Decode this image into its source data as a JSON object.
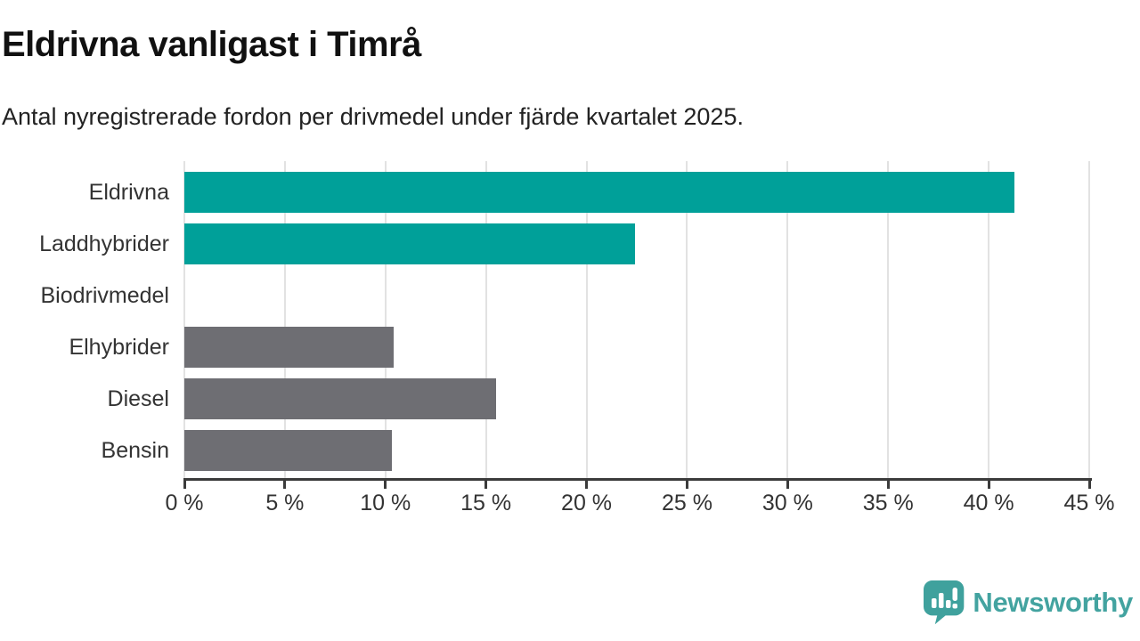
{
  "header": {
    "title": "Eldrivna vanligast i Timrå",
    "subtitle": "Antal nyregistrerade fordon per drivmedel under fjärde kvartalet 2025."
  },
  "chart_data": {
    "type": "bar",
    "orientation": "horizontal",
    "title": "Eldrivna vanligast i Timrå",
    "subtitle": "Antal nyregistrerade fordon per drivmedel under fjärde kvartalet 2025.",
    "categories": [
      "Eldrivna",
      "Laddhybrider",
      "Biodrivmedel",
      "Elhybrider",
      "Diesel",
      "Bensin"
    ],
    "values": [
      41.3,
      22.4,
      0,
      10.4,
      15.5,
      10.3
    ],
    "unit": "%",
    "xlim": [
      0,
      45
    ],
    "x_ticks": [
      0,
      5,
      10,
      15,
      20,
      25,
      30,
      35,
      40,
      45
    ],
    "x_tick_labels": [
      "0 %",
      "5 %",
      "10 %",
      "15 %",
      "20 %",
      "25 %",
      "30 %",
      "35 %",
      "40 %",
      "45 %"
    ],
    "bar_colors": [
      "#00a099",
      "#00a099",
      "#6e6e73",
      "#6e6e73",
      "#6e6e73",
      "#6e6e73"
    ],
    "grid": true,
    "legend": "none"
  },
  "colors": {
    "teal_bar": "#00a099",
    "gray_bar": "#6e6e73",
    "gridline": "#e2e2e2",
    "axis": "#3b3b3b",
    "text_dark": "#111111",
    "text_body": "#333333",
    "brand_teal": "#43a3a0"
  },
  "footer": {
    "brand": "Newsworthy",
    "logo_icon": "newsworthy-speech-bubble-barchart-icon"
  }
}
